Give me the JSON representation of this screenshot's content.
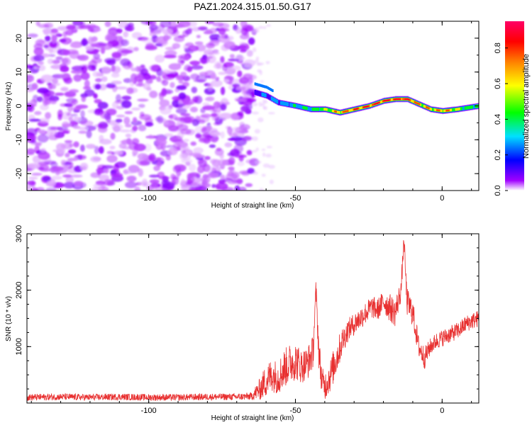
{
  "title": "PAZ1.2024.315.01.50.G17",
  "chart_data": [
    {
      "type": "heatmap",
      "xlabel": "Height of straight line (km)",
      "ylabel": "Frequency (Hz)",
      "xlim": [
        -141.5,
        12.5
      ],
      "ylim": [
        -25,
        25
      ],
      "xticks": [
        -100,
        -50,
        0
      ],
      "yticks": [
        20,
        10,
        0,
        -10,
        -20
      ],
      "xtick_labels": [
        "-100",
        "-50",
        "0"
      ],
      "ytick_labels": [
        "20",
        "10",
        "0",
        "-10",
        "-20"
      ],
      "colorbar": {
        "label": "Normalized spectral amplitude",
        "range": [
          0.0,
          0.95
        ],
        "ticks": [
          0.0,
          0.2,
          0.4,
          0.6,
          0.8
        ],
        "tick_labels": [
          "0.0",
          "0.2",
          "0.4",
          "0.6",
          "0.8"
        ],
        "colormap": [
          "#ffffff",
          "#a000ff",
          "#0000ff",
          "#00e0ff",
          "#00ff00",
          "#ffff00",
          "#ff8000",
          "#ff0000",
          "#ff0066"
        ]
      },
      "noise_region": {
        "x_range": [
          -141.5,
          -64
        ],
        "amplitude_range": [
          0.0,
          0.15
        ]
      },
      "signal_track": {
        "x": [
          -64,
          -60,
          -56,
          -50,
          -45,
          -40,
          -35,
          -30,
          -25,
          -20,
          -16,
          -12,
          -8,
          -4,
          0,
          5,
          12.5
        ],
        "y": [
          4,
          3,
          1,
          0,
          -1,
          -1,
          -2,
          -1,
          0,
          1.5,
          2,
          2,
          0.5,
          -1,
          -1.5,
          -1,
          0
        ],
        "peak_amplitude": [
          0.25,
          0.3,
          0.35,
          0.4,
          0.45,
          0.55,
          0.7,
          0.75,
          0.8,
          0.85,
          0.85,
          0.8,
          0.7,
          0.65,
          0.7,
          0.55,
          0.45
        ]
      },
      "grid": false
    },
    {
      "type": "line",
      "xlabel": "Height of straight line (km)",
      "ylabel": "SNR (10 * v/v)",
      "xlim": [
        -141.5,
        12.5
      ],
      "ylim": [
        0,
        3000
      ],
      "xticks": [
        -100,
        -50,
        0
      ],
      "yticks": [
        1000,
        2000,
        3000
      ],
      "xtick_labels": [
        "-100",
        "-50",
        "0"
      ],
      "ytick_labels": [
        "1000",
        "2000",
        "3000"
      ],
      "line_color": "#e83030",
      "grid": false,
      "series": [
        {
          "x": [
            -141.5,
            -130,
            -120,
            -110,
            -100,
            -90,
            -80,
            -70,
            -65,
            -62,
            -60,
            -58,
            -56,
            -54,
            -52,
            -50,
            -48,
            -46,
            -44,
            -43,
            -42,
            -41,
            -40,
            -38,
            -36,
            -34,
            -32,
            -30,
            -28,
            -26,
            -24,
            -22,
            -20,
            -18,
            -16,
            -14,
            -13,
            -12,
            -10,
            -8,
            -6,
            -4,
            -2,
            0,
            2,
            4,
            6,
            8,
            10,
            12.5
          ],
          "values": [
            100,
            110,
            100,
            110,
            100,
            100,
            110,
            110,
            120,
            250,
            400,
            500,
            450,
            600,
            700,
            750,
            650,
            700,
            900,
            2000,
            900,
            400,
            300,
            500,
            800,
            1100,
            1300,
            1400,
            1500,
            1600,
            1700,
            1650,
            1800,
            1700,
            1600,
            2000,
            2900,
            1800,
            1600,
            1000,
            800,
            1000,
            1100,
            1150,
            1200,
            1250,
            1300,
            1400,
            1450,
            1500
          ],
          "noise_amplitude": [
            60,
            60,
            60,
            60,
            60,
            60,
            60,
            60,
            70,
            200,
            300,
            300,
            300,
            350,
            350,
            350,
            300,
            300,
            300,
            200,
            300,
            250,
            250,
            300,
            300,
            250,
            200,
            200,
            200,
            200,
            200,
            200,
            200,
            250,
            250,
            200,
            150,
            250,
            250,
            200,
            200,
            150,
            150,
            150,
            150,
            150,
            150,
            150,
            150,
            150
          ]
        }
      ]
    }
  ]
}
